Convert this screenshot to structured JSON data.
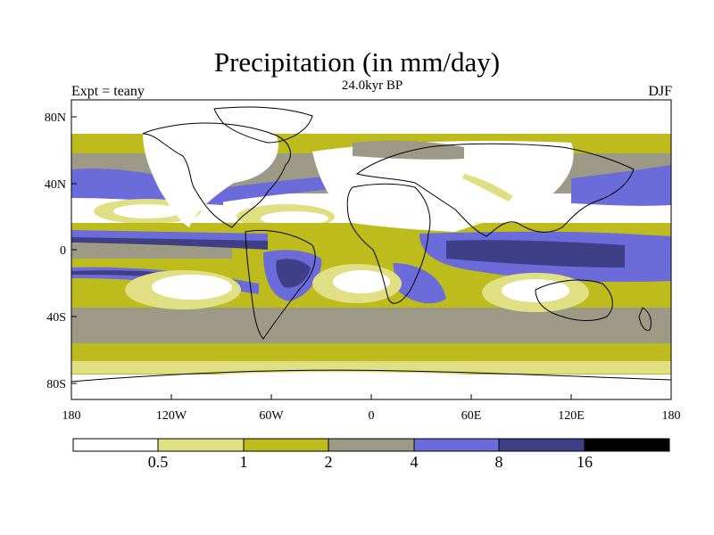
{
  "title": "Precipitation (in mm/day)",
  "subtitle": "24.0kyr BP",
  "left_label": "Expt = teany",
  "right_label": "DJF",
  "axes": {
    "lon_ticks": [
      "180",
      "120W",
      "60W",
      "0",
      "60E",
      "120E",
      "180"
    ],
    "lat_ticks": [
      "80N",
      "40N",
      "0",
      "40S",
      "80S"
    ]
  },
  "colorbar": {
    "labels": [
      "0.5",
      "1",
      "2",
      "4",
      "8",
      "16"
    ],
    "colors": [
      "#ffffff",
      "#e0df84",
      "#bebb1d",
      "#9c9a87",
      "#6b6bd9",
      "#3f3f88",
      "#000000"
    ]
  },
  "palette": {
    "white": "#ffffff",
    "c1": "#e0df84",
    "c2": "#bebb1d",
    "c3": "#9c9a87",
    "c4": "#6b6bd9",
    "c5": "#3f3f88",
    "c6": "#000000"
  }
}
